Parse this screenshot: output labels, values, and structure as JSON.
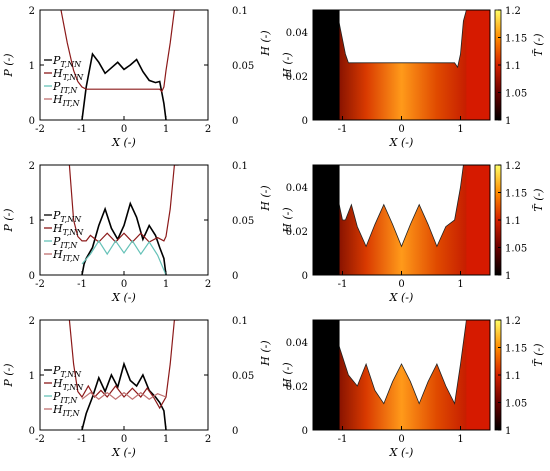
{
  "figure": {
    "row_count": 3
  },
  "colorbar": {
    "label": "T̃ (-)",
    "ticks": [
      "1",
      "1.05",
      "1.1",
      "1.15",
      "1.2"
    ]
  },
  "chart_data": [
    {
      "type": "line",
      "panel": "row1-left",
      "xlabel": "X (-)",
      "ylabel_left": "P (-)",
      "ylabel_right": "H (-)",
      "xlim": [
        -2,
        2
      ],
      "ylim_left": [
        0,
        2
      ],
      "ylim_right": [
        0,
        0.1
      ],
      "xticks": [
        "-2",
        "-1",
        "0",
        "1",
        "2"
      ],
      "yticks_left": [
        "0",
        "1",
        "2"
      ],
      "yticks_right": [
        "0",
        "0.05",
        "0.1"
      ],
      "legend": [
        "P_T,NN",
        "H_T,NN",
        "P_IT,N",
        "H_IT,N"
      ],
      "series": [
        {
          "name": "P_T,NN",
          "axis": "left",
          "color": "#000000",
          "x": [
            -1.0,
            -0.9,
            -0.75,
            -0.6,
            -0.45,
            -0.3,
            -0.15,
            0.0,
            0.15,
            0.3,
            0.45,
            0.6,
            0.75,
            0.85,
            0.95,
            1.0
          ],
          "y": [
            0.0,
            0.6,
            1.2,
            1.05,
            0.85,
            0.95,
            1.05,
            0.92,
            1.0,
            1.1,
            0.88,
            0.72,
            0.68,
            0.7,
            0.3,
            0.0
          ]
        },
        {
          "name": "H_T,NN",
          "axis": "right",
          "color": "#8c1a1a",
          "x": [
            -1.5,
            -1.35,
            -1.2,
            -1.1,
            -1.0,
            -0.9,
            -0.5,
            0.0,
            0.5,
            0.85,
            0.9,
            0.95,
            1.0,
            1.1,
            1.2,
            1.3
          ],
          "y": [
            0.1,
            0.07,
            0.045,
            0.035,
            0.03,
            0.028,
            0.028,
            0.028,
            0.028,
            0.028,
            0.026,
            0.03,
            0.045,
            0.07,
            0.1,
            0.1
          ]
        }
      ]
    },
    {
      "type": "heatmap",
      "panel": "row1-right",
      "xlabel": "X (-)",
      "ylabel": "H (-)",
      "xlim": [
        -1.5,
        1.5
      ],
      "ylim": [
        0,
        0.05
      ],
      "xticks": [
        "-1",
        "0",
        "1"
      ],
      "yticks": [
        "0",
        "0.02",
        "0.04"
      ],
      "clim": [
        1,
        1.2
      ],
      "gap_profile": {
        "x": [
          -1.5,
          -1.3,
          -1.1,
          -0.95,
          -0.9,
          0.0,
          0.9,
          0.95,
          1.0,
          1.05,
          1.1,
          1.15,
          1.3,
          1.5
        ],
        "h": [
          0.05,
          0.05,
          0.05,
          0.03,
          0.026,
          0.026,
          0.026,
          0.024,
          0.03,
          0.045,
          0.05,
          0.05,
          0.05,
          0.05
        ]
      }
    },
    {
      "type": "line",
      "panel": "row2-left",
      "xlabel": "X (-)",
      "ylabel_left": "P (-)",
      "ylabel_right": "H (-)",
      "xlim": [
        -2,
        2
      ],
      "ylim_left": [
        0,
        2
      ],
      "ylim_right": [
        0,
        0.1
      ],
      "xticks": [
        "-2",
        "-1",
        "0",
        "1",
        "2"
      ],
      "yticks_left": [
        "0",
        "1",
        "2"
      ],
      "yticks_right": [
        "0",
        "0.05",
        "0.1"
      ],
      "legend": [
        "P_T,NN",
        "H_T,NN",
        "P_IT,N",
        "H_IT,N"
      ],
      "series": [
        {
          "name": "P_T,NN",
          "axis": "left",
          "color": "#000000",
          "x": [
            -1.0,
            -0.95,
            -0.9,
            -0.75,
            -0.6,
            -0.45,
            -0.3,
            -0.15,
            0.0,
            0.15,
            0.3,
            0.45,
            0.6,
            0.75,
            0.85,
            0.95,
            1.0
          ],
          "y": [
            0.0,
            0.2,
            0.3,
            0.5,
            0.9,
            1.2,
            0.85,
            0.65,
            0.9,
            1.3,
            1.05,
            0.65,
            0.9,
            0.72,
            0.5,
            0.3,
            0.0
          ]
        },
        {
          "name": "H_T,NN",
          "axis": "right",
          "color": "#8c1a1a",
          "x": [
            -1.3,
            -1.2,
            -1.1,
            -1.0,
            -0.9,
            -0.8,
            -0.6,
            -0.4,
            -0.2,
            0.0,
            0.2,
            0.4,
            0.6,
            0.8,
            0.95,
            1.0,
            1.1,
            1.2,
            1.3
          ],
          "y": [
            0.1,
            0.05,
            0.035,
            0.031,
            0.031,
            0.036,
            0.03,
            0.038,
            0.03,
            0.038,
            0.03,
            0.038,
            0.03,
            0.034,
            0.031,
            0.035,
            0.06,
            0.1,
            0.1
          ]
        },
        {
          "name": "P_IT,N",
          "axis": "left",
          "color": "#66c2b8",
          "x": [
            -1.0,
            -0.8,
            -0.6,
            -0.4,
            -0.2,
            0.0,
            0.2,
            0.4,
            0.6,
            0.8,
            1.0
          ],
          "y": [
            0.2,
            0.38,
            0.62,
            0.38,
            0.62,
            0.4,
            0.62,
            0.38,
            0.6,
            0.36,
            0.0
          ]
        }
      ]
    },
    {
      "type": "heatmap",
      "panel": "row2-right",
      "xlabel": "X (-)",
      "ylabel": "H (-)",
      "xlim": [
        -1.5,
        1.5
      ],
      "ylim": [
        0,
        0.05
      ],
      "xticks": [
        "-1",
        "0",
        "1"
      ],
      "yticks": [
        "0",
        "0.02",
        "0.04"
      ],
      "clim": [
        1,
        1.2
      ],
      "gap_profile": {
        "x": [
          -1.5,
          -1.2,
          -1.0,
          -0.95,
          -0.85,
          -0.75,
          -0.6,
          -0.45,
          -0.3,
          -0.15,
          0.0,
          0.15,
          0.3,
          0.45,
          0.6,
          0.75,
          0.9,
          1.0,
          1.05,
          1.1,
          1.5
        ],
        "h": [
          0.05,
          0.05,
          0.025,
          0.025,
          0.032,
          0.022,
          0.013,
          0.023,
          0.032,
          0.023,
          0.013,
          0.023,
          0.032,
          0.023,
          0.013,
          0.022,
          0.025,
          0.04,
          0.05,
          0.05,
          0.05
        ]
      }
    },
    {
      "type": "line",
      "panel": "row3-left",
      "xlabel": "X (-)",
      "ylabel_left": "P (-)",
      "ylabel_right": "H (-)",
      "xlim": [
        -2,
        2
      ],
      "ylim_left": [
        0,
        2
      ],
      "ylim_right": [
        0,
        0.1
      ],
      "xticks": [
        "-2",
        "-1",
        "0",
        "1",
        "2"
      ],
      "yticks_left": [
        "0",
        "1",
        "2"
      ],
      "yticks_right": [
        "0",
        "0.05",
        "0.1"
      ],
      "legend": [
        "P_T,NN",
        "H_T,NN",
        "P_IT,N",
        "H_IT,N"
      ],
      "series": [
        {
          "name": "P_T,NN",
          "axis": "left",
          "color": "#000000",
          "x": [
            -1.0,
            -0.9,
            -0.75,
            -0.6,
            -0.45,
            -0.3,
            -0.15,
            0.0,
            0.15,
            0.3,
            0.45,
            0.6,
            0.75,
            0.85,
            0.95,
            1.0
          ],
          "y": [
            0.0,
            0.3,
            0.6,
            0.95,
            0.7,
            1.0,
            0.78,
            1.2,
            0.9,
            0.8,
            1.0,
            0.72,
            0.6,
            0.5,
            0.35,
            0.0
          ]
        },
        {
          "name": "H_T,NN",
          "axis": "right",
          "color": "#8c1a1a",
          "x": [
            -1.3,
            -1.2,
            -1.1,
            -1.0,
            -0.85,
            -0.7,
            -0.55,
            -0.4,
            -0.2,
            0.0,
            0.2,
            0.4,
            0.55,
            0.7,
            0.85,
            1.0,
            1.1,
            1.2,
            1.3
          ],
          "y": [
            0.1,
            0.06,
            0.035,
            0.03,
            0.04,
            0.03,
            0.036,
            0.03,
            0.04,
            0.03,
            0.038,
            0.03,
            0.038,
            0.03,
            0.02,
            0.03,
            0.06,
            0.1,
            0.1
          ]
        },
        {
          "name": "H_IT,N",
          "axis": "right",
          "color": "#c07070",
          "x": [
            -1.0,
            -0.8,
            -0.6,
            -0.4,
            -0.2,
            0.0,
            0.2,
            0.4,
            0.6,
            0.8,
            1.0
          ],
          "y": [
            0.028,
            0.034,
            0.028,
            0.034,
            0.028,
            0.034,
            0.028,
            0.034,
            0.028,
            0.033,
            0.03
          ]
        }
      ]
    },
    {
      "type": "heatmap",
      "panel": "row3-right",
      "xlabel": "X (-)",
      "ylabel": "H (-)",
      "xlim": [
        -1.5,
        1.5
      ],
      "ylim": [
        0,
        0.05
      ],
      "xticks": [
        "-1",
        "0",
        "1"
      ],
      "yticks": [
        "0",
        "0.02",
        "0.04"
      ],
      "clim": [
        1,
        1.2
      ],
      "gap_profile": {
        "x": [
          -1.5,
          -1.2,
          -0.9,
          -0.75,
          -0.6,
          -0.45,
          -0.3,
          -0.15,
          0.0,
          0.15,
          0.3,
          0.45,
          0.6,
          0.75,
          0.9,
          1.0,
          1.1,
          1.5
        ],
        "h": [
          0.05,
          0.05,
          0.025,
          0.02,
          0.03,
          0.018,
          0.012,
          0.022,
          0.03,
          0.022,
          0.012,
          0.022,
          0.03,
          0.02,
          0.012,
          0.03,
          0.05,
          0.05
        ]
      }
    }
  ]
}
